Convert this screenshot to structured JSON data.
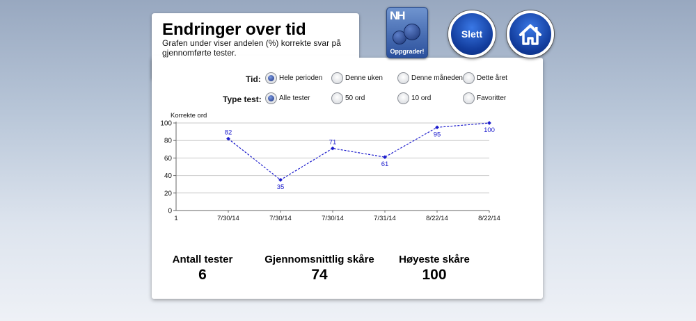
{
  "header": {
    "title": "Endringer over tid",
    "subtitle": "Grafen under viser andelen (%) korrekte svar på gjennomførte tester."
  },
  "app_icon": {
    "logo": "NH",
    "label": "Oppgrader!",
    "icon": "chat-bubbles-icon"
  },
  "buttons": {
    "delete_label": "Slett",
    "home_icon": "home-icon"
  },
  "filters": {
    "time": {
      "label": "Tid:",
      "options": [
        {
          "label": "Hele perioden",
          "selected": true
        },
        {
          "label": "Denne uken",
          "selected": false
        },
        {
          "label": "Denne måneden",
          "selected": false
        },
        {
          "label": "Dette året",
          "selected": false
        }
      ]
    },
    "type": {
      "label": "Type test:",
      "options": [
        {
          "label": "Alle tester",
          "selected": true
        },
        {
          "label": "50 ord",
          "selected": false
        },
        {
          "label": "10 ord",
          "selected": false
        },
        {
          "label": "Favoritter",
          "selected": false
        }
      ]
    }
  },
  "chart_data": {
    "type": "line",
    "ylabel": "Korrekte ord",
    "ylim": [
      0,
      100
    ],
    "yticks": [
      0,
      20,
      40,
      60,
      80,
      100
    ],
    "x_start_label": "1",
    "categories": [
      "7/30/14",
      "7/30/14",
      "7/30/14",
      "7/31/14",
      "8/22/14",
      "8/22/14"
    ],
    "values": [
      82,
      35,
      71,
      61,
      95,
      100
    ],
    "grid": true,
    "line_style": "dashed",
    "color": "#1a1acc"
  },
  "stats": {
    "count_label": "Antall tester",
    "count_value": "6",
    "avg_label": "Gjennomsnittlig skåre",
    "avg_value": "74",
    "max_label": "Høyeste skåre",
    "max_value": "100"
  }
}
